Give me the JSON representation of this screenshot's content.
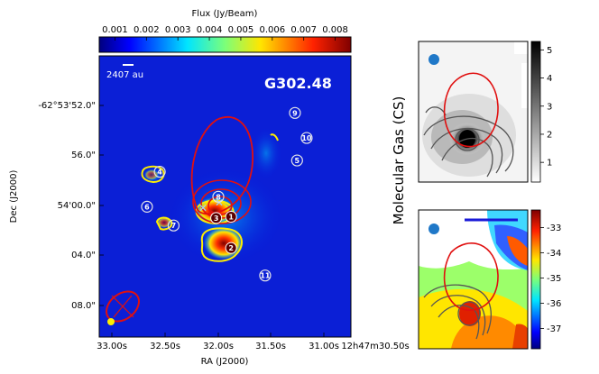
{
  "chart_data": [
    {
      "type": "heatmap",
      "panel": "main",
      "title": "G302.48",
      "colorbar_label": "Flux (Jy/Beam)",
      "colorbar_ticks": [
        "0.001",
        "0.002",
        "0.003",
        "0.004",
        "0.005",
        "0.006",
        "0.007",
        "0.008"
      ],
      "colorbar_range": [
        0.0005,
        0.0085
      ],
      "colormap": "jet",
      "xlabel": "RA (J2000)",
      "ylabel": "Dec (J2000)",
      "x_ticks": [
        "33.00s",
        "32.50s",
        "32.00s",
        "31.50s",
        "31.00s",
        "12h47m30.50s"
      ],
      "y_ticks": [
        "-62°53'52.0\"",
        "56.0\"",
        "54'00.0\"",
        "04.0\"",
        "08.0\""
      ],
      "scale_bar_label": "2407 au",
      "sources": [
        {
          "id": "1",
          "ra": 31.88,
          "dec": "54:00.9"
        },
        {
          "id": "2",
          "ra": 31.88,
          "dec": "54:03.4"
        },
        {
          "id": "3",
          "ra": 32.02,
          "dec": "54:01.0"
        },
        {
          "id": "4",
          "ra": 32.55,
          "dec": "53:57.3"
        },
        {
          "id": "5",
          "ra": 31.26,
          "dec": "53:56.4"
        },
        {
          "id": "6",
          "ra": 32.67,
          "dec": "54:00.1"
        },
        {
          "id": "7",
          "ra": 32.42,
          "dec": "54:01.6"
        },
        {
          "id": "8",
          "ra": 32.0,
          "dec": "53:59.3"
        },
        {
          "id": "9",
          "ra": 31.28,
          "dec": "53:52.6"
        },
        {
          "id": "10",
          "ra": 31.17,
          "dec": "53:54.6"
        },
        {
          "id": "11",
          "ra": 31.56,
          "dec": "54:05.6"
        }
      ]
    },
    {
      "type": "heatmap",
      "panel": "molecular-gas-moment0",
      "colormap": "gray_r",
      "colorbar_ticks": [
        "1",
        "2",
        "3",
        "4",
        "5"
      ],
      "colorbar_range": [
        0.3,
        5.3
      ]
    },
    {
      "type": "heatmap",
      "panel": "molecular-gas-velocity",
      "colormap": "jet_r",
      "colorbar_ticks": [
        "-33",
        "-34",
        "-35",
        "-36",
        "-37"
      ],
      "colorbar_range": [
        -37.8,
        -32.3
      ]
    }
  ],
  "side_label": "Molecular Gas (CS)"
}
